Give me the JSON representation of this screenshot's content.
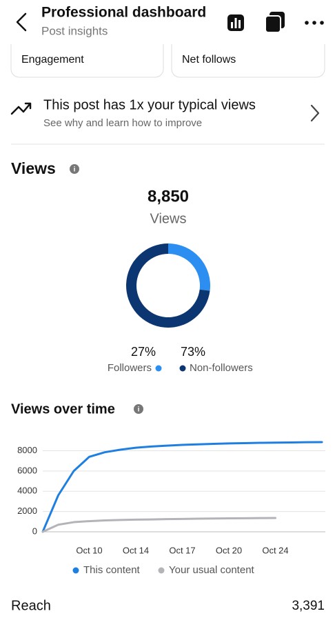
{
  "header": {
    "title": "Professional dashboard",
    "subtitle": "Post insights"
  },
  "cards": [
    {
      "label": "Engagement"
    },
    {
      "label": "Net follows"
    }
  ],
  "notice": {
    "title": "This post has 1x your typical views",
    "subtitle": "See why and learn how to improve"
  },
  "views": {
    "title": "Views",
    "total": "8,850",
    "total_caption": "Views",
    "chart": {
      "type": "donut",
      "categories": [
        "Followers",
        "Non-followers"
      ],
      "values": [
        27,
        73
      ],
      "value_labels": [
        "27%",
        "73%"
      ],
      "colors": [
        "#2b8ef0",
        "#0b3672"
      ]
    }
  },
  "views_over_time": {
    "title": "Views over time",
    "chart": {
      "type": "line",
      "categories": [
        null,
        null,
        null,
        "Oct 10",
        null,
        null,
        "Oct 14",
        null,
        null,
        "Oct 17",
        null,
        null,
        "Oct 20",
        null,
        null,
        "Oct 24",
        null,
        null,
        null
      ],
      "series": [
        {
          "name": "This content",
          "color": "#1f7fe0",
          "values": [
            0,
            3600,
            6000,
            7400,
            7850,
            8100,
            8300,
            8420,
            8500,
            8580,
            8630,
            8680,
            8720,
            8750,
            8780,
            8800,
            8820,
            8840,
            8850
          ]
        },
        {
          "name": "Your usual content",
          "color": "#b3b3b8",
          "values": [
            0,
            700,
            950,
            1050,
            1120,
            1170,
            1200,
            1220,
            1250,
            1270,
            1290,
            1310,
            1330,
            1340,
            1350,
            1360,
            null,
            null,
            null
          ]
        }
      ],
      "ylim": [
        0,
        9600
      ],
      "yticks": [
        0,
        2000,
        4000,
        6000,
        8000
      ],
      "grid": true
    }
  },
  "reach": {
    "label": "Reach",
    "value": "3,391"
  }
}
